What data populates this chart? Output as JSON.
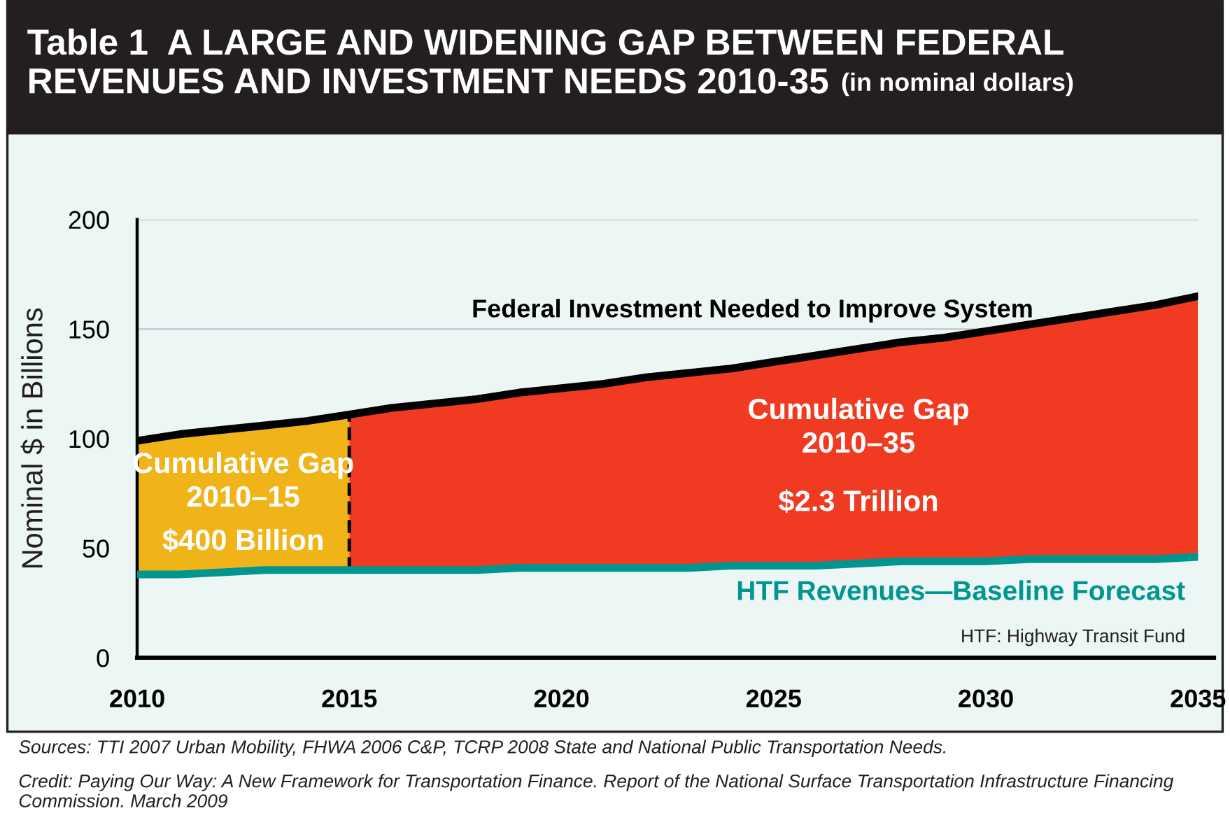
{
  "chart_data": {
    "type": "line",
    "title": "Table 1  A LARGE AND WIDENING GAP BETWEEN FEDERAL\nREVENUES AND INVESTMENT NEEDS 2010-35",
    "subtitle": "(in nominal dollars)",
    "ylabel": "Nominal $ in Billions",
    "x": [
      2010,
      2011,
      2012,
      2013,
      2014,
      2015,
      2016,
      2017,
      2018,
      2019,
      2020,
      2021,
      2022,
      2023,
      2024,
      2025,
      2026,
      2027,
      2028,
      2029,
      2030,
      2031,
      2032,
      2033,
      2034,
      2035
    ],
    "series": [
      {
        "name": "Federal Investment Needed to Improve System",
        "color": "#000000",
        "values": [
          99,
          102,
          104,
          106,
          108,
          111,
          114,
          116,
          118,
          121,
          123,
          125,
          128,
          130,
          132,
          135,
          138,
          141,
          144,
          146,
          149,
          152,
          155,
          158,
          161,
          165
        ],
        "lower": [
          38,
          38,
          39,
          40,
          40,
          40,
          null,
          null,
          null,
          null,
          null,
          null,
          null,
          null,
          null,
          null,
          null,
          null,
          null,
          null,
          null,
          null,
          null,
          null,
          null,
          null
        ],
        "upper": [
          99,
          102,
          104,
          106,
          108,
          111,
          null,
          null,
          null,
          null,
          null,
          null,
          null,
          null,
          null,
          null,
          null,
          null,
          null,
          null,
          null,
          null,
          null,
          null,
          null,
          null
        ],
        "colors": [
          "#f0b418",
          "#f0b418",
          "#f0b418",
          "#f0b418",
          "#f0b418",
          "#f0b418",
          null,
          null,
          null,
          null,
          null,
          null,
          null,
          null,
          null,
          null,
          null,
          null,
          null,
          null,
          null,
          null,
          null,
          null,
          null,
          null
        ]
      },
      {
        "name": "HTF Revenues—Baseline Forecast",
        "color": "#00968f",
        "values": [
          38,
          38,
          39,
          40,
          40,
          40,
          40,
          40,
          40,
          41,
          41,
          41,
          41,
          41,
          42,
          42,
          42,
          43,
          44,
          44,
          44,
          45,
          45,
          45,
          45,
          46
        ],
        "lower": [
          null,
          null,
          null,
          null,
          null,
          40,
          40,
          40,
          40,
          41,
          41,
          41,
          41,
          41,
          42,
          42,
          42,
          43,
          44,
          44,
          44,
          45,
          45,
          45,
          45,
          46
        ],
        "upper": [
          null,
          null,
          null,
          null,
          null,
          111,
          114,
          116,
          118,
          121,
          123,
          125,
          128,
          130,
          132,
          135,
          138,
          141,
          144,
          146,
          149,
          152,
          155,
          158,
          161,
          165
        ],
        "colors": [
          null,
          null,
          null,
          null,
          null,
          "#f7941d",
          "#f68b1d",
          "#f6821e",
          "#f5791e",
          "#f4711f",
          "#f4681f",
          "#f35f20",
          "#f25620",
          "#f24d21",
          "#f14422",
          "#f03b22",
          "#f03223",
          "#ef2a23",
          "#ee2124",
          "#ed1c24",
          "#ed1c24",
          "#ed1c24",
          "#ed1c24",
          "#ed1c24",
          "#ed1c24",
          "#ed1c24"
        ]
      }
    ],
    "xlim": [
      2010,
      2035
    ],
    "ylim": [
      0,
      200
    ],
    "xticks": [
      2010,
      2015,
      2020,
      2025,
      2030,
      2035
    ],
    "yticks": [
      0,
      50,
      100,
      150,
      200
    ],
    "grid": "y",
    "marker": "none",
    "line_style": "solid",
    "legend": false,
    "ref_lines": [
      {
        "axis": "x",
        "value": 2015,
        "color": "#000000",
        "line_style": "dashed"
      }
    ],
    "annotations": [
      "Cumulative Gap\n2010–15",
      "$400 Billion",
      "Cumulative Gap\n2010–35",
      "$2.3 Trillion",
      "HTF: Highway Transit Fund",
      "Sources: TTI 2007 Urban Mobility, FHWA 2006 C&P, TCRP 2008 State and National Public Transportation Needs.",
      "Credit: Paying Our Way: A New Framework for Transportation Finance. Report of the National Surface Transportation Infrastructure Financing Commission. March 2009"
    ]
  }
}
